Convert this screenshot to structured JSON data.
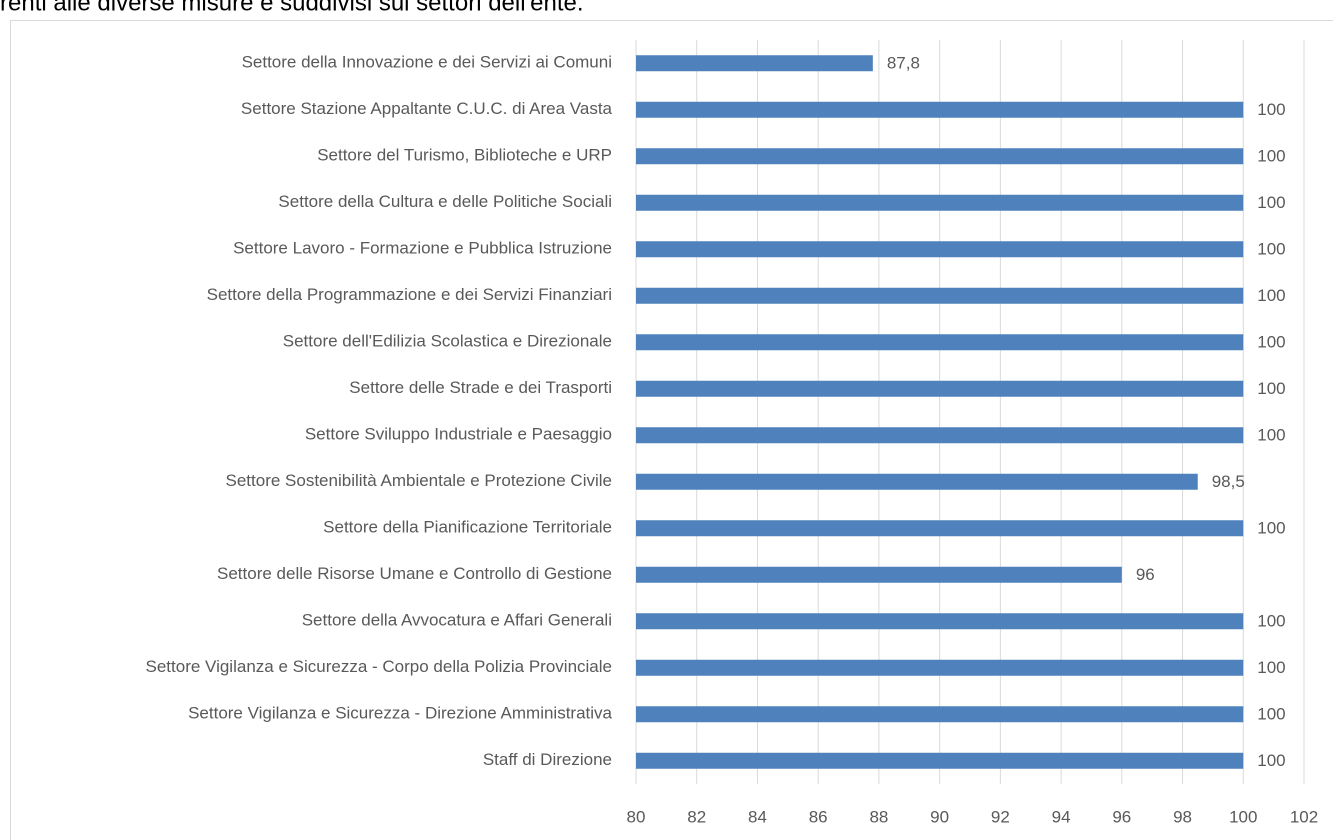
{
  "chart_data": {
    "type": "bar",
    "orientation": "horizontal",
    "caption": "renti alle diverse misure e suddivisi sui settori dell'ente.",
    "categories": [
      "Settore della Innovazione e dei Servizi ai Comuni",
      "Settore Stazione Appaltante C.U.C. di Area Vasta",
      "Settore del Turismo, Biblioteche e URP",
      "Settore della Cultura e delle Politiche Sociali",
      "Settore Lavoro - Formazione e Pubblica Istruzione",
      "Settore della Programmazione e dei Servizi Finanziari",
      "Settore dell'Edilizia Scolastica e Direzionale",
      "Settore delle Strade e dei Trasporti",
      "Settore Sviluppo Industriale e Paesaggio",
      "Settore Sostenibilità Ambientale e Protezione Civile",
      "Settore della Pianificazione Territoriale",
      "Settore delle Risorse Umane e Controllo di Gestione",
      "Settore della Avvocatura e Affari Generali",
      "Settore Vigilanza e Sicurezza - Corpo della Polizia Provinciale",
      "Settore Vigilanza e Sicurezza - Direzione Amministrativa",
      "Staff di Direzione"
    ],
    "values": [
      87.8,
      100,
      100,
      100,
      100,
      100,
      100,
      100,
      100,
      98.5,
      100,
      96,
      100,
      100,
      100,
      100
    ],
    "value_labels": [
      "87,8",
      "100",
      "100",
      "100",
      "100",
      "100",
      "100",
      "100",
      "100",
      "98,5",
      "100",
      "96",
      "100",
      "100",
      "100",
      "100"
    ],
    "color": "#4f81bd",
    "xlim": [
      80,
      102
    ],
    "xticks": [
      80,
      82,
      84,
      86,
      88,
      90,
      92,
      94,
      96,
      98,
      100,
      102
    ],
    "grid": true
  }
}
